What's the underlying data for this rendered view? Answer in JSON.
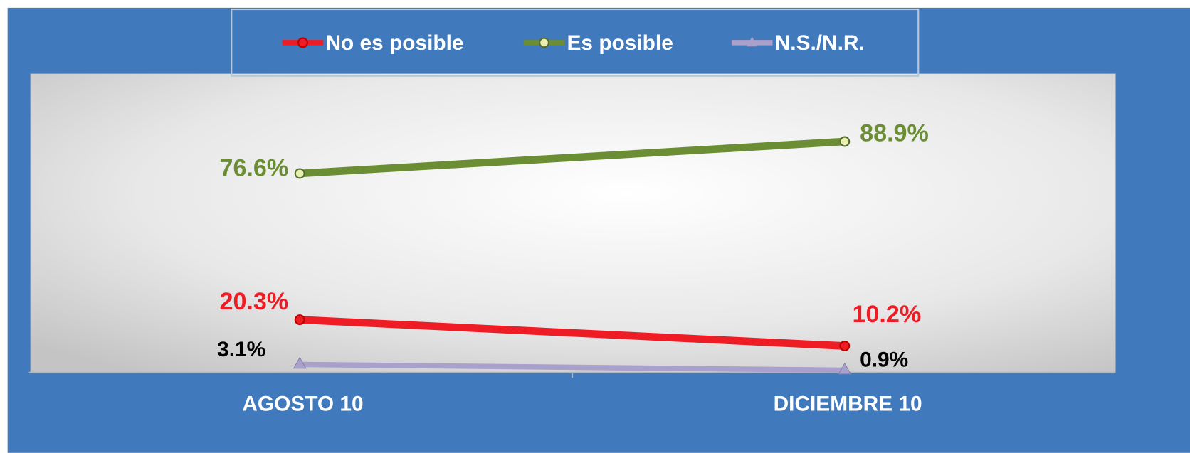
{
  "chart_data": {
    "type": "line",
    "categories": [
      "AGOSTO 10",
      "DICIEMBRE 10"
    ],
    "series": [
      {
        "name": "No es posible",
        "color": "#ee1c25",
        "values": [
          20.3,
          10.2
        ],
        "value_labels": [
          "20.3%",
          "10.2%"
        ]
      },
      {
        "name": "Es posible",
        "color": "#6b8e35",
        "values": [
          76.6,
          88.9
        ],
        "value_labels": [
          "76.6%",
          "88.9%"
        ]
      },
      {
        "name": "N.S./N.R.",
        "color": "#a9a0cc",
        "values": [
          3.1,
          0.9
        ],
        "value_labels": [
          "3.1%",
          "0.9%"
        ]
      }
    ],
    "ylim": [
      0,
      115
    ],
    "legend": "top"
  }
}
